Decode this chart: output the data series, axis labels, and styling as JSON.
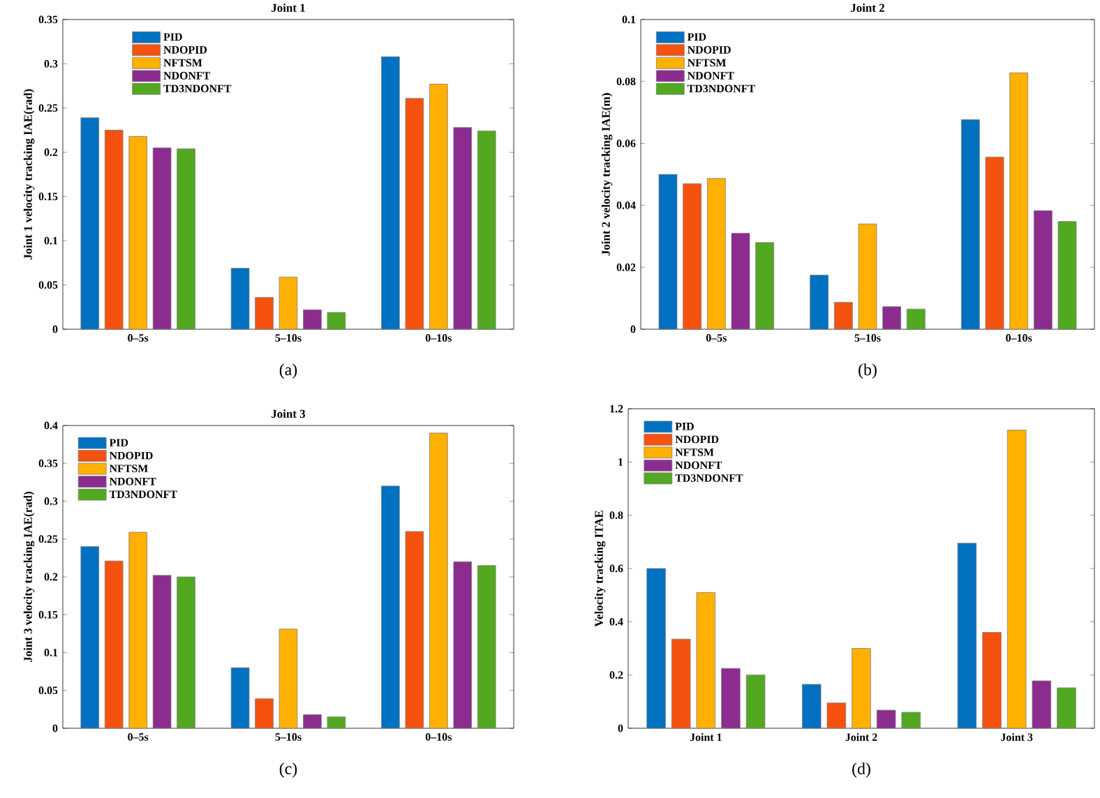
{
  "chart_data": [
    {
      "type": "bar",
      "title": "Joint 1",
      "ylabel": "Joint 1 velocity tracking IAE(rad)",
      "categories": [
        "0–5s",
        "5–10s",
        "0–10s"
      ],
      "ylim": [
        0,
        0.35
      ],
      "yticks": [
        0,
        0.05,
        0.1,
        0.15,
        0.2,
        0.25,
        0.3,
        0.35
      ],
      "legend": "top",
      "annotations": [
        "(a)"
      ],
      "series": [
        {
          "name": "PID",
          "color": "#0070c0",
          "values": [
            0.239,
            0.069,
            0.308
          ]
        },
        {
          "name": "NDOPID",
          "color": "#f5520f",
          "values": [
            0.225,
            0.036,
            0.261
          ]
        },
        {
          "name": "NFTSM",
          "color": "#ffb000",
          "values": [
            0.218,
            0.059,
            0.277
          ]
        },
        {
          "name": "NDONFT",
          "color": "#8b2c8e",
          "values": [
            0.205,
            0.022,
            0.228
          ]
        },
        {
          "name": "TD3NDONFT",
          "color": "#52a820",
          "values": [
            0.204,
            0.019,
            0.224
          ]
        }
      ]
    },
    {
      "type": "bar",
      "title": "Joint 2",
      "ylabel": "Joint 2 velocity tracking IAE(m)",
      "categories": [
        "0–5s",
        "5–10s",
        "0–10s"
      ],
      "ylim": [
        0,
        0.1
      ],
      "yticks": [
        0,
        0.02,
        0.04,
        0.06,
        0.08,
        0.1
      ],
      "legend": "top left",
      "annotations": [
        "(b)"
      ],
      "series": [
        {
          "name": "PID",
          "color": "#0070c0",
          "values": [
            0.05,
            0.0175,
            0.0677
          ]
        },
        {
          "name": "NDOPID",
          "color": "#f5520f",
          "values": [
            0.047,
            0.0087,
            0.0556
          ]
        },
        {
          "name": "NFTSM",
          "color": "#ffb000",
          "values": [
            0.0487,
            0.034,
            0.0828
          ]
        },
        {
          "name": "NDONFT",
          "color": "#8b2c8e",
          "values": [
            0.031,
            0.0073,
            0.0383
          ]
        },
        {
          "name": "TD3NDONFT",
          "color": "#52a820",
          "values": [
            0.028,
            0.0065,
            0.0348
          ]
        }
      ]
    },
    {
      "type": "bar",
      "title": "Joint 3",
      "ylabel": "Joint 3 velocity tracking IAE(rad)",
      "categories": [
        "0–5s",
        "5–10s",
        "0–10s"
      ],
      "ylim": [
        0,
        0.4
      ],
      "yticks": [
        0,
        0.05,
        0.1,
        0.15,
        0.2,
        0.25,
        0.3,
        0.35,
        0.4
      ],
      "legend": "top left",
      "annotations": [
        "(c)"
      ],
      "series": [
        {
          "name": "PID",
          "color": "#0070c0",
          "values": [
            0.24,
            0.08,
            0.32
          ]
        },
        {
          "name": "NDOPID",
          "color": "#f5520f",
          "values": [
            0.221,
            0.039,
            0.26
          ]
        },
        {
          "name": "NFTSM",
          "color": "#ffb000",
          "values": [
            0.259,
            0.131,
            0.39
          ]
        },
        {
          "name": "NDONFT",
          "color": "#8b2c8e",
          "values": [
            0.202,
            0.018,
            0.22
          ]
        },
        {
          "name": "TD3NDONFT",
          "color": "#52a820",
          "values": [
            0.2,
            0.015,
            0.215
          ]
        }
      ]
    },
    {
      "type": "bar",
      "ylabel": "Velocity tracking ITAE",
      "categories": [
        "Joint 1",
        "Joint 2",
        "Joint 3"
      ],
      "ylim": [
        0,
        1.2
      ],
      "yticks": [
        0,
        0.2,
        0.4,
        0.6,
        0.8,
        1,
        1.2
      ],
      "legend": "top left",
      "annotations": [
        "(d)"
      ],
      "series": [
        {
          "name": "PID",
          "color": "#0070c0",
          "values": [
            0.6,
            0.165,
            0.695
          ]
        },
        {
          "name": "NDOPID",
          "color": "#f5520f",
          "values": [
            0.335,
            0.095,
            0.36
          ]
        },
        {
          "name": "NFTSM",
          "color": "#ffb000",
          "values": [
            0.51,
            0.3,
            1.12
          ]
        },
        {
          "name": "NDONFT",
          "color": "#8b2c8e",
          "values": [
            0.225,
            0.068,
            0.178
          ]
        },
        {
          "name": "TD3NDONFT",
          "color": "#52a820",
          "values": [
            0.2,
            0.06,
            0.152
          ]
        }
      ]
    }
  ]
}
